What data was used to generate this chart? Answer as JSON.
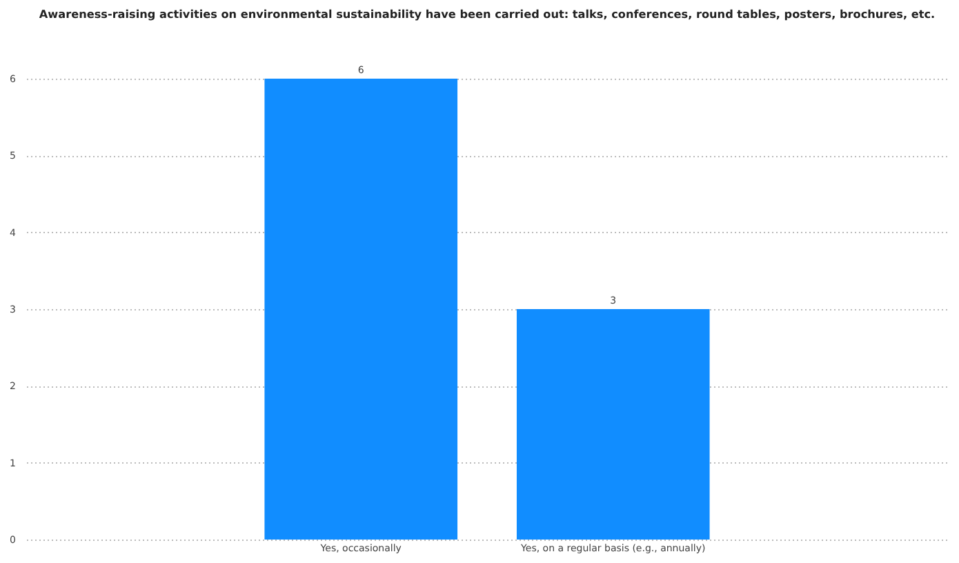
{
  "chart_data": {
    "type": "bar",
    "title": "Awareness-raising activities on environmental sustainability have been carried out: talks, conferences, round tables, posters, brochures, etc.",
    "categories": [
      "Yes, occasionally",
      "Yes, on a regular basis (e.g., annually)"
    ],
    "values": [
      6,
      3
    ],
    "color": "#118dff",
    "ylim": [
      0,
      6
    ],
    "yticks": [
      0,
      1,
      2,
      3,
      4,
      5,
      6
    ],
    "grid": "y",
    "data_labels": true
  }
}
